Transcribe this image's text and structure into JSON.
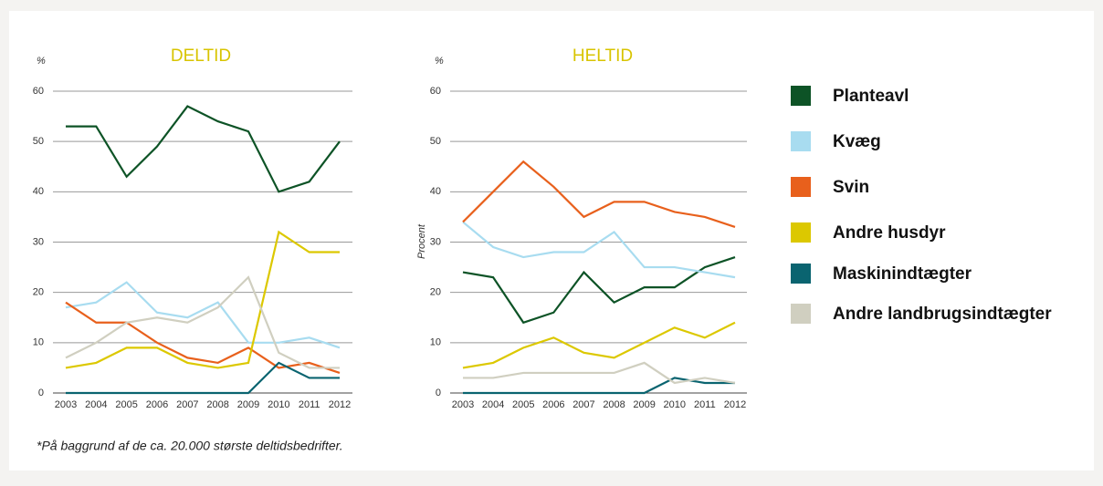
{
  "chart_data": [
    {
      "type": "line",
      "title": "DELTID",
      "unit": "%",
      "categories": [
        "2003",
        "2004",
        "2005",
        "2006",
        "2007",
        "2008",
        "2009",
        "2010",
        "2011",
        "2012"
      ],
      "ylim": [
        0,
        60
      ],
      "yticks": [
        0,
        10,
        20,
        30,
        40,
        50,
        60
      ],
      "grid": true,
      "series": [
        {
          "name": "Planteavl",
          "color": "#0d5326",
          "values": [
            53,
            53,
            43,
            49,
            57,
            54,
            52,
            40,
            42,
            50
          ]
        },
        {
          "name": "Kvæg",
          "color": "#a8dcf0",
          "values": [
            17,
            18,
            22,
            16,
            15,
            18,
            10,
            10,
            11,
            9
          ]
        },
        {
          "name": "Svin",
          "color": "#e8601c",
          "values": [
            18,
            14,
            14,
            10,
            7,
            6,
            9,
            5,
            6,
            4
          ]
        },
        {
          "name": "Andre husdyr",
          "color": "#dcc800",
          "values": [
            5,
            6,
            9,
            9,
            6,
            5,
            6,
            32,
            28,
            28
          ]
        },
        {
          "name": "Maskinindtægter",
          "color": "#0a6470",
          "values": [
            0,
            0,
            0,
            0,
            0,
            0,
            0,
            6,
            3,
            3
          ]
        },
        {
          "name": "Andre landbrugsindtægter",
          "color": "#d0cfc0",
          "values": [
            7,
            10,
            14,
            15,
            14,
            17,
            23,
            8,
            5,
            5
          ]
        }
      ]
    },
    {
      "type": "line",
      "title": "HELTID",
      "unit": "%",
      "ylabel": "Procent",
      "categories": [
        "2003",
        "2004",
        "2005",
        "2006",
        "2007",
        "2008",
        "2009",
        "2010",
        "2011",
        "2012"
      ],
      "ylim": [
        0,
        60
      ],
      "yticks": [
        0,
        10,
        20,
        30,
        40,
        50,
        60
      ],
      "grid": true,
      "series": [
        {
          "name": "Planteavl",
          "color": "#0d5326",
          "values": [
            24,
            23,
            14,
            16,
            24,
            18,
            21,
            21,
            25,
            27
          ]
        },
        {
          "name": "Kvæg",
          "color": "#a8dcf0",
          "values": [
            34,
            29,
            27,
            28,
            28,
            32,
            25,
            25,
            24,
            23
          ]
        },
        {
          "name": "Svin",
          "color": "#e8601c",
          "values": [
            34,
            40,
            46,
            41,
            35,
            38,
            38,
            36,
            35,
            33
          ]
        },
        {
          "name": "Andre husdyr",
          "color": "#dcc800",
          "values": [
            5,
            6,
            9,
            11,
            8,
            7,
            10,
            13,
            11,
            14
          ]
        },
        {
          "name": "Maskinindtægter",
          "color": "#0a6470",
          "values": [
            0,
            0,
            0,
            0,
            0,
            0,
            0,
            3,
            2,
            2
          ]
        },
        {
          "name": "Andre landbrugsindtægter",
          "color": "#d0cfc0",
          "values": [
            3,
            3,
            4,
            4,
            4,
            4,
            6,
            2,
            3,
            2
          ]
        }
      ]
    }
  ],
  "footnote": "*På baggrund af de ca. 20.000 største deltidsbedrifter."
}
